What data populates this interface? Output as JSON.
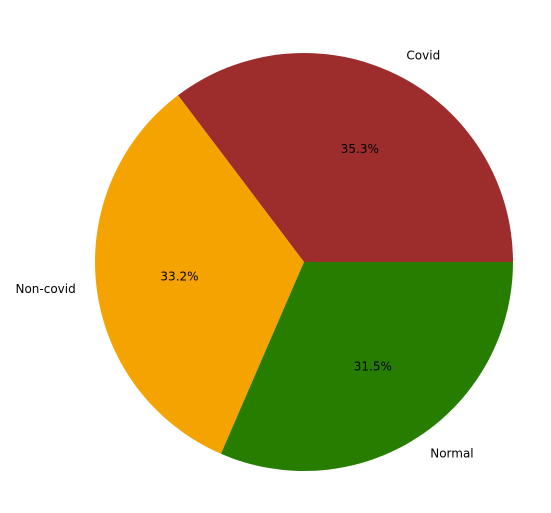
{
  "chart_data": {
    "type": "pie",
    "title": "",
    "start_angle_deg": 0,
    "direction": "counterclockwise",
    "slices": [
      {
        "label": "Covid",
        "value": 35.3,
        "pct_label": "35.3%",
        "color": "#9d2c2c"
      },
      {
        "label": "Non-covid",
        "value": 33.2,
        "pct_label": "33.2%",
        "color": "#f5a300"
      },
      {
        "label": "Normal",
        "value": 31.5,
        "pct_label": "31.5%",
        "color": "#267d00"
      }
    ],
    "legend": "none",
    "edgecolor": "none"
  }
}
